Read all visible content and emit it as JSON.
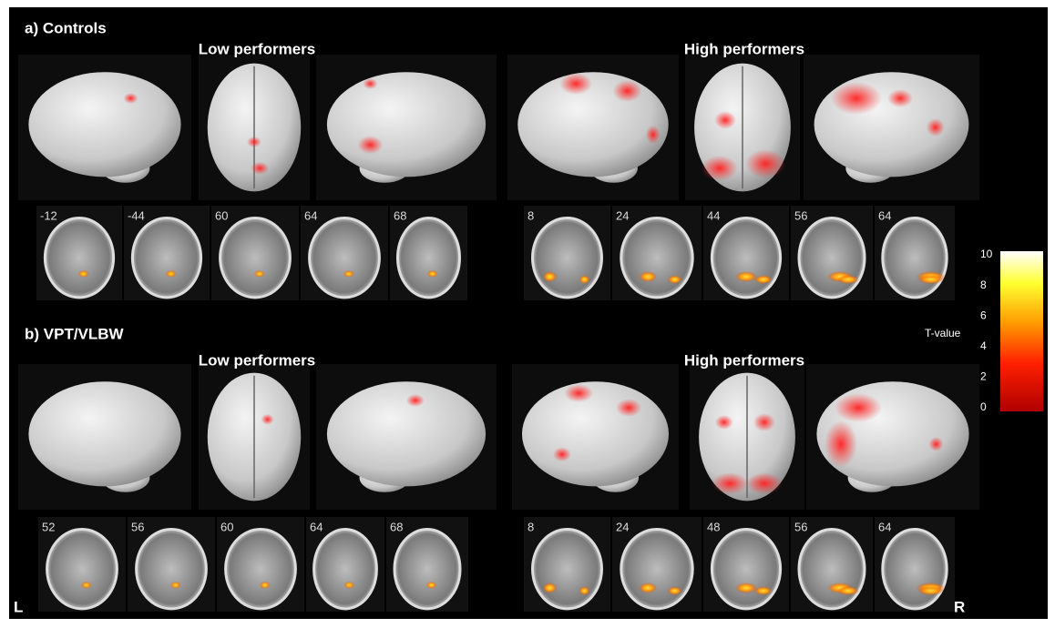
{
  "panels": [
    {
      "label": "a) Controls",
      "groups": [
        {
          "title": "Low performers",
          "slices": [
            "-12",
            "-44",
            "60",
            "64",
            "68"
          ]
        },
        {
          "title": "High performers",
          "slices": [
            "8",
            "24",
            "44",
            "56",
            "64"
          ]
        }
      ]
    },
    {
      "label": "b) VPT/VLBW",
      "groups": [
        {
          "title": "Low performers",
          "slices": [
            "52",
            "56",
            "60",
            "64",
            "68"
          ]
        },
        {
          "title": "High performers",
          "slices": [
            "8",
            "24",
            "48",
            "56",
            "64"
          ]
        }
      ]
    }
  ],
  "colorbar": {
    "label": "T-value",
    "ticks": [
      0,
      2,
      4,
      6,
      8,
      10
    ]
  },
  "corners": {
    "left": "L",
    "right": "R"
  }
}
